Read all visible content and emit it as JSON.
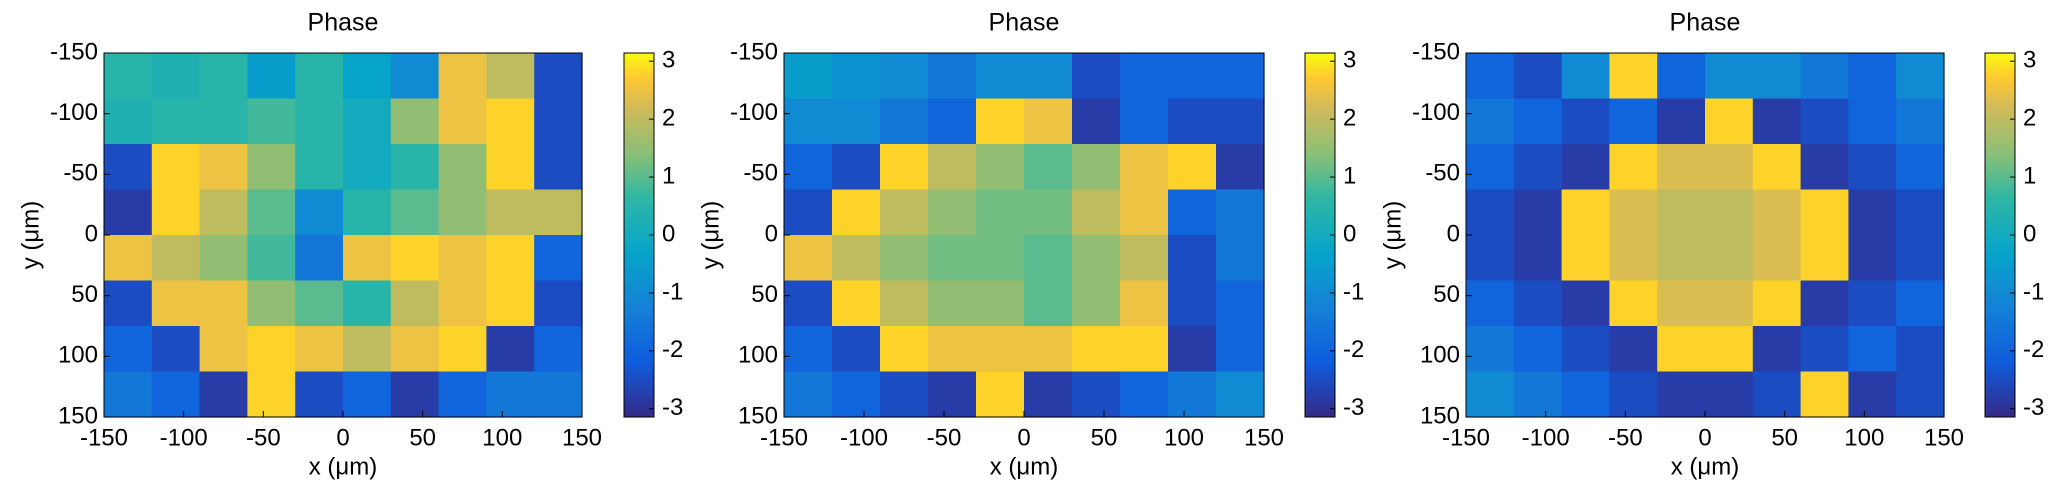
{
  "chart_data": [
    {
      "type": "heatmap",
      "title": "Phase",
      "xlabel": "x (μm)",
      "ylabel": "y (μm)",
      "x": [
        -135,
        -105,
        -75,
        -45,
        -15,
        15,
        45,
        75,
        105,
        135
      ],
      "y": [
        -131.25,
        -93.75,
        -56.25,
        -18.75,
        18.75,
        56.25,
        93.75,
        131.25
      ],
      "z": [
        [
          0.5,
          0.3,
          0.5,
          -0.5,
          0.5,
          -0.3,
          -1,
          2.5,
          2,
          -2.5
        ],
        [
          0.3,
          0.5,
          0.5,
          0.8,
          0.5,
          0,
          1.5,
          2.5,
          2.8,
          -2.5
        ],
        [
          -2.5,
          2.8,
          2.5,
          1.5,
          0.5,
          0,
          0.5,
          1.5,
          2.8,
          -2.5
        ],
        [
          -2.8,
          2.8,
          2,
          1,
          -1,
          0.5,
          1,
          1.5,
          2,
          2
        ],
        [
          2.5,
          2,
          1.5,
          0.8,
          -1.5,
          2.5,
          2.8,
          2.5,
          2.8,
          -2
        ],
        [
          -2.5,
          2.5,
          2.5,
          1.5,
          1,
          0.5,
          2,
          2.5,
          2.8,
          -2.5
        ],
        [
          -2,
          -2.5,
          2.5,
          2.8,
          2.5,
          2,
          2.5,
          2.8,
          -2.8,
          -2
        ],
        [
          -1.5,
          -2,
          -2.8,
          2.8,
          -2.5,
          -2,
          -2.8,
          -2,
          -1.5,
          -1.5
        ]
      ],
      "xlim": [
        -150,
        150
      ],
      "ylim": [
        -150,
        150
      ],
      "y_direction": "reverse",
      "xticks": [
        -150,
        -100,
        -50,
        0,
        50,
        100,
        150
      ],
      "yticks": [
        -150,
        -100,
        -50,
        0,
        50,
        100,
        150
      ],
      "clim": [
        -3.1416,
        3.1416
      ],
      "cticks": [
        -3,
        -2,
        -1,
        0,
        1,
        2,
        3
      ],
      "colormap": "parula"
    },
    {
      "type": "heatmap",
      "title": "Phase",
      "xlabel": "x (μm)",
      "ylabel": "y (μm)",
      "x": [
        -135,
        -105,
        -75,
        -45,
        -15,
        15,
        45,
        75,
        105,
        135
      ],
      "y": [
        -131.25,
        -93.75,
        -56.25,
        -18.75,
        18.75,
        56.25,
        93.75,
        131.25
      ],
      "z": [
        [
          -0.5,
          -0.8,
          -1,
          -1.5,
          -1,
          -1,
          -2.5,
          -2,
          -2,
          -2
        ],
        [
          -1,
          -1,
          -1.5,
          -2,
          2.8,
          2.5,
          -2.8,
          -2,
          -2.5,
          -2.5
        ],
        [
          -2,
          -2.5,
          2.8,
          2,
          1.5,
          1,
          1.5,
          2.5,
          2.8,
          -2.8
        ],
        [
          -2.5,
          2.8,
          2,
          1.5,
          1.2,
          1.2,
          2,
          2.5,
          -2,
          -1.5
        ],
        [
          2.5,
          2,
          1.5,
          1.2,
          1.2,
          1,
          1.5,
          2,
          -2.5,
          -1.5
        ],
        [
          -2.5,
          2.8,
          2,
          1.5,
          1.5,
          1,
          1.5,
          2.5,
          -2.5,
          -2
        ],
        [
          -2,
          -2.5,
          2.8,
          2.5,
          2.5,
          2.5,
          2.8,
          2.8,
          -2.8,
          -2
        ],
        [
          -1.5,
          -2,
          -2.5,
          -2.8,
          2.8,
          -2.8,
          -2.5,
          -2,
          -1.5,
          -1
        ]
      ],
      "xlim": [
        -150,
        150
      ],
      "ylim": [
        -150,
        150
      ],
      "y_direction": "reverse",
      "xticks": [
        -150,
        -100,
        -50,
        0,
        50,
        100,
        150
      ],
      "yticks": [
        -150,
        -100,
        -50,
        0,
        50,
        100,
        150
      ],
      "clim": [
        -3.1416,
        3.1416
      ],
      "cticks": [
        -3,
        -2,
        -1,
        0,
        1,
        2,
        3
      ],
      "colormap": "parula"
    },
    {
      "type": "heatmap",
      "title": "Phase",
      "xlabel": "x (μm)",
      "ylabel": "y (μm)",
      "x": [
        -135,
        -105,
        -75,
        -45,
        -15,
        15,
        45,
        75,
        105,
        135
      ],
      "y": [
        -131.25,
        -93.75,
        -56.25,
        -18.75,
        18.75,
        56.25,
        93.75,
        131.25
      ],
      "z": [
        [
          -2,
          -2.5,
          -1,
          2.8,
          -2,
          -1,
          -1,
          -1.5,
          -2,
          -1
        ],
        [
          -1.5,
          -2,
          -2.5,
          -2,
          -2.8,
          2.8,
          -2.8,
          -2.5,
          -2,
          -1.5
        ],
        [
          -2,
          -2.5,
          -2.8,
          2.8,
          2.3,
          2.3,
          2.8,
          -2.8,
          -2.5,
          -2
        ],
        [
          -2.5,
          -2.8,
          2.8,
          2.3,
          2,
          2,
          2.3,
          2.8,
          -2.8,
          -2.5
        ],
        [
          -2.5,
          -2.8,
          2.8,
          2.3,
          2,
          2,
          2.3,
          2.8,
          -2.8,
          -2.5
        ],
        [
          -2,
          -2.5,
          -2.8,
          2.8,
          2.3,
          2.3,
          2.8,
          -2.8,
          -2.5,
          -2
        ],
        [
          -1.5,
          -2,
          -2.5,
          -2.8,
          2.8,
          2.8,
          -2.8,
          -2.5,
          -2,
          -2.5
        ],
        [
          -1,
          -1.5,
          -2,
          -2.5,
          -2.8,
          -2.8,
          -2.5,
          2.8,
          -2.8,
          -2.5
        ]
      ],
      "xlim": [
        -150,
        150
      ],
      "ylim": [
        -150,
        150
      ],
      "y_direction": "reverse",
      "xticks": [
        -150,
        -100,
        -50,
        0,
        50,
        100,
        150
      ],
      "yticks": [
        -150,
        -100,
        -50,
        0,
        50,
        100,
        150
      ],
      "clim": [
        -3.1416,
        3.1416
      ],
      "cticks": [
        -3,
        -2,
        -1,
        0,
        1,
        2,
        3
      ],
      "colormap": "parula"
    }
  ]
}
